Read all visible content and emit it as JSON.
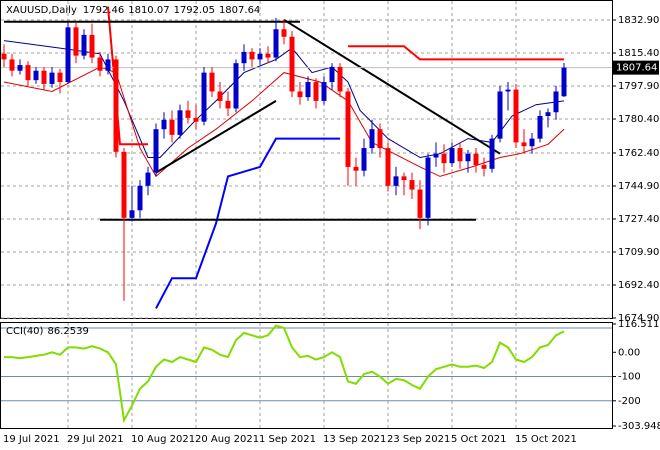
{
  "chart_data": [
    {
      "type": "candlestick",
      "title": "XAUUSD,Daily",
      "categories": [
        "19 Jul 2021",
        null,
        null,
        null,
        null,
        null,
        null,
        null,
        "29 Jul 2021",
        null,
        null,
        null,
        null,
        null,
        null,
        null,
        "10 Aug 2021",
        null,
        null,
        null,
        null,
        null,
        null,
        null,
        "20 Aug 2021",
        null,
        null,
        null,
        null,
        null,
        null,
        null,
        "1 Sep 2021",
        null,
        null,
        null,
        null,
        null,
        null,
        null,
        "13 Sep 2021",
        null,
        null,
        null,
        null,
        null,
        null,
        null,
        "23 Sep 2021",
        null,
        null,
        null,
        null,
        null,
        null,
        null,
        "5 Oct 2021",
        null,
        null,
        null,
        null,
        null,
        null,
        null,
        "15 Oct 2021",
        null,
        null,
        null,
        null,
        null,
        null
      ],
      "open": [
        1815,
        1812,
        1806,
        1809,
        1801,
        1806,
        1799,
        1805,
        1800,
        1829,
        1814,
        1825,
        1813,
        1806,
        1812,
        1763,
        1728,
        1732,
        1745,
        1752,
        1775,
        1780,
        1772,
        1785,
        1781,
        1779,
        1805,
        1795,
        1790,
        1786,
        1810,
        1816,
        1812,
        1815,
        1813,
        1828,
        1824,
        1795,
        1792,
        1800,
        1790,
        1800,
        1808,
        1795,
        1755,
        1753,
        1765,
        1775,
        1765,
        1745,
        1750,
        1748,
        1743,
        1728,
        1760,
        1762,
        1757,
        1765,
        1758,
        1762,
        1756,
        1754,
        1770,
        1795,
        1796,
        1768,
        1766,
        1770,
        1782,
        1784,
        1792.46
      ],
      "high": [
        1820,
        1815,
        1812,
        1811,
        1808,
        1808,
        1808,
        1807,
        1832,
        1832,
        1828,
        1831,
        1816,
        1815,
        1814,
        1765,
        1745,
        1748,
        1755,
        1778,
        1784,
        1785,
        1788,
        1790,
        1788,
        1808,
        1808,
        1800,
        1795,
        1812,
        1820,
        1818,
        1818,
        1819,
        1834,
        1833,
        1827,
        1800,
        1803,
        1802,
        1803,
        1810,
        1810,
        1797,
        1760,
        1770,
        1780,
        1778,
        1768,
        1755,
        1752,
        1752,
        1748,
        1762,
        1768,
        1767,
        1768,
        1768,
        1764,
        1765,
        1760,
        1772,
        1798,
        1800,
        1799,
        1775,
        1773,
        1785,
        1786,
        1798,
        1810.07
      ],
      "low": [
        1808,
        1803,
        1804,
        1798,
        1799,
        1796,
        1797,
        1794,
        1799,
        1810,
        1812,
        1810,
        1803,
        1804,
        1760,
        1684,
        1726,
        1728,
        1740,
        1750,
        1770,
        1768,
        1770,
        1778,
        1775,
        1777,
        1792,
        1786,
        1782,
        1784,
        1806,
        1808,
        1809,
        1810,
        1811,
        1820,
        1792,
        1788,
        1790,
        1786,
        1788,
        1796,
        1792,
        1745,
        1745,
        1750,
        1762,
        1760,
        1742,
        1740,
        1740,
        1738,
        1722,
        1724,
        1755,
        1752,
        1755,
        1754,
        1752,
        1752,
        1750,
        1752,
        1768,
        1785,
        1765,
        1762,
        1762,
        1768,
        1776,
        1780,
        1792.05
      ],
      "close": [
        1812,
        1806,
        1809,
        1801,
        1806,
        1799,
        1805,
        1800,
        1829,
        1814,
        1825,
        1813,
        1806,
        1812,
        1763,
        1728,
        1732,
        1745,
        1752,
        1775,
        1780,
        1772,
        1785,
        1781,
        1779,
        1805,
        1795,
        1790,
        1786,
        1810,
        1816,
        1812,
        1815,
        1813,
        1828,
        1824,
        1795,
        1792,
        1800,
        1790,
        1800,
        1808,
        1795,
        1755,
        1753,
        1765,
        1775,
        1765,
        1745,
        1750,
        1748,
        1743,
        1728,
        1760,
        1762,
        1757,
        1765,
        1758,
        1762,
        1756,
        1754,
        1770,
        1795,
        1796,
        1768,
        1766,
        1770,
        1782,
        1784,
        1795,
        1807.64
      ],
      "up_color": "#0000cd",
      "down_color": "#ff0000",
      "ylim": [
        1674.9,
        1843.5
      ],
      "yticks": [
        {
          "value": 1832.9,
          "label": "1832.90"
        },
        {
          "value": 1815.4,
          "label": "1815.40"
        },
        {
          "value": 1797.9,
          "label": "1797.90"
        },
        {
          "value": 1780.4,
          "label": "1780.40"
        },
        {
          "value": 1762.4,
          "label": "1762.40"
        },
        {
          "value": 1744.9,
          "label": "1744.90"
        },
        {
          "value": 1727.4,
          "label": "1727.40"
        },
        {
          "value": 1709.9,
          "label": "1709.90"
        },
        {
          "value": 1692.4,
          "label": "1692.40"
        },
        {
          "value": 1674.9,
          "label": "1674.90"
        }
      ],
      "grid": true,
      "overlays": [
        {
          "color": "#00008b",
          "width": 1,
          "x": [
            0,
            7,
            12,
            15,
            18,
            19.5,
            24,
            26.5,
            30,
            34,
            36,
            38.5,
            41,
            43,
            44.5,
            48,
            52,
            54.5,
            58,
            61,
            63.5,
            66.5,
            70
          ],
          "values": [
            1822,
            1818,
            1815,
            1790,
            1760,
            1760,
            1780,
            1790,
            1805,
            1812,
            1818,
            1805,
            1808,
            1800,
            1785,
            1770,
            1760,
            1762,
            1770,
            1768,
            1782,
            1788,
            1790
          ]
        },
        {
          "color": "#dd0000",
          "width": 1,
          "x": [
            0,
            6,
            12,
            14,
            17,
            19,
            23,
            26.5,
            31,
            35,
            39.5,
            43,
            46,
            52,
            54.5,
            58.5,
            62,
            64.5,
            68,
            70
          ],
          "values": [
            1800,
            1795,
            1808,
            1805,
            1765,
            1750,
            1765,
            1775,
            1790,
            1805,
            1800,
            1790,
            1768,
            1755,
            1750,
            1755,
            1760,
            1762,
            1767,
            1775
          ]
        },
        {
          "color": "#ff0000",
          "width": 2,
          "x": [
            13,
            14.5,
            18
          ],
          "values": [
            1840,
            1767,
            1767
          ]
        },
        {
          "color": "#ff0000",
          "width": 2,
          "x": [
            43,
            50,
            52,
            70
          ],
          "values": [
            1819,
            1819,
            1812,
            1812
          ]
        },
        {
          "color": "#0000ff",
          "width": 2,
          "x": [
            19,
            21,
            24,
            26.5,
            28,
            32,
            34,
            42
          ],
          "values": [
            1680,
            1696,
            1696,
            1725,
            1750,
            1755,
            1770,
            1770
          ]
        },
        {
          "color": "#000000",
          "width": 2,
          "x": [
            0,
            37
          ],
          "values": [
            1832,
            1832
          ]
        },
        {
          "color": "#000000",
          "width": 2,
          "x": [
            12,
            59
          ],
          "values": [
            1727,
            1727
          ]
        },
        {
          "color": "#000000",
          "width": 2,
          "x": [
            19,
            34
          ],
          "values": [
            1752,
            1790
          ]
        },
        {
          "color": "#000000",
          "width": 2,
          "x": [
            35,
            62
          ],
          "values": [
            1833,
            1762
          ]
        }
      ]
    },
    {
      "type": "line",
      "title": "CCI(40)",
      "color": "#7fdd00",
      "values": [
        -20,
        -20,
        -25,
        -20,
        -15,
        -10,
        0,
        -10,
        20,
        20,
        15,
        25,
        15,
        0,
        -50,
        -280,
        -220,
        -150,
        -120,
        -60,
        -30,
        -40,
        -20,
        -30,
        -40,
        20,
        10,
        -10,
        -20,
        50,
        80,
        70,
        60,
        70,
        110,
        100,
        20,
        -20,
        -15,
        -30,
        -20,
        0,
        -20,
        -120,
        -130,
        -90,
        -80,
        -100,
        -130,
        -110,
        -115,
        -135,
        -150,
        -100,
        -70,
        -60,
        -50,
        -60,
        -60,
        -55,
        -65,
        -40,
        40,
        20,
        -30,
        -40,
        -20,
        20,
        30,
        70,
        86.2539
      ],
      "ylim": [
        -303.9481,
        116.5118
      ],
      "yticks": [
        116.5118,
        {
          "value": 0,
          "label": "0.00"
        },
        -100,
        -200,
        -303.9481
      ],
      "levels": [
        100,
        -100,
        -200
      ],
      "level_color": "#6a8caf"
    }
  ]
}
